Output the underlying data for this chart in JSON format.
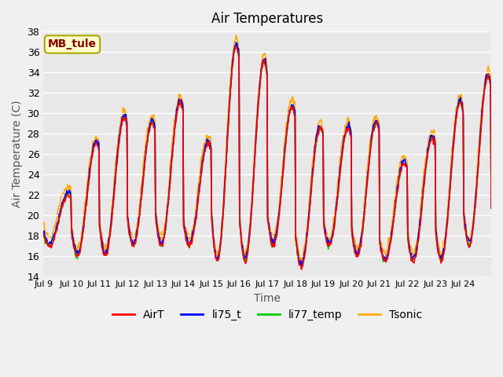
{
  "title": "Air Temperatures",
  "xlabel": "Time",
  "ylabel": "Air Temperature (C)",
  "ylim": [
    14,
    38
  ],
  "yticks": [
    14,
    16,
    18,
    20,
    22,
    24,
    26,
    28,
    30,
    32,
    34,
    36,
    38
  ],
  "xtick_labels": [
    "Jul 9",
    "Jul 10",
    "Jul 11",
    "Jul 12",
    "Jul 13",
    "Jul 14",
    "Jul 15",
    "Jul 16",
    "Jul 17",
    "Jul 18",
    "Jul 19",
    "Jul 20",
    "Jul 21",
    "Jul 22",
    "Jul 23",
    "Jul 24"
  ],
  "series": [
    "AirT",
    "li75_t",
    "li77_temp",
    "Tsonic"
  ],
  "colors": [
    "#ff0000",
    "#0000ff",
    "#00cc00",
    "#ffaa00"
  ],
  "annotation_text": "MB_tule",
  "annotation_color": "#8b0000",
  "annotation_bg": "#ffffcc",
  "background_color": "#e8e8e8",
  "plot_bg": "#e8e8e8",
  "grid_color": "#ffffff",
  "linewidth": 1.2,
  "title_fontsize": 12,
  "axis_fontsize": 10,
  "legend_fontsize": 10,
  "num_days": 16,
  "points_per_day": 48
}
